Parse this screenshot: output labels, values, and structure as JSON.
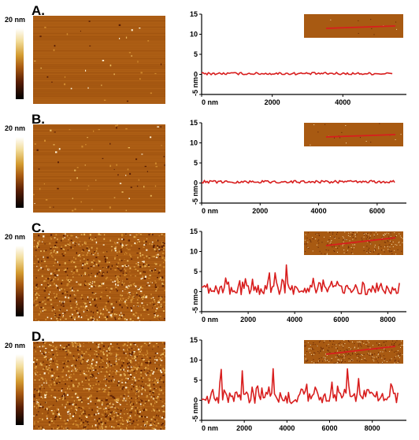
{
  "scale_label": "20 nm",
  "colors": {
    "trace": "#d81e1e",
    "afm_base": "#a85a12"
  },
  "chart_data": [
    {
      "type": "line",
      "panel": "A.",
      "xunit": "0 nm",
      "xticks": [
        0,
        2000,
        4000
      ],
      "xlim": [
        0,
        5800
      ],
      "yticks": [
        15,
        10,
        5,
        0,
        -5
      ],
      "ylabel": "-5 nm",
      "ylim": [
        -5,
        15
      ],
      "x_end": 5400,
      "baseline": 0.2,
      "noise": 0.3,
      "peaks": [],
      "has_line_inset": true
    },
    {
      "type": "line",
      "panel": "B.",
      "xunit": "0 nm",
      "xticks": [
        0,
        2000,
        4000,
        6000
      ],
      "xlim": [
        0,
        7000
      ],
      "yticks": [
        15,
        10,
        5,
        0,
        -5
      ],
      "ylabel": "-5 nm",
      "ylim": [
        -5,
        15
      ],
      "x_end": 6600,
      "baseline": 0.3,
      "noise": 0.35,
      "peaks": [],
      "has_line_inset": true
    },
    {
      "type": "line",
      "panel": "C.",
      "xunit": "0 nm",
      "xticks": [
        0,
        2000,
        4000,
        6000,
        8000
      ],
      "xlim": [
        0,
        8800
      ],
      "yticks": [
        15,
        10,
        5,
        0,
        -5
      ],
      "ylabel": "-5 nm",
      "ylim": [
        -5,
        15
      ],
      "x_end": 8500,
      "baseline": 0.4,
      "noise": 1.2,
      "peaks": [
        [
          1050,
          4.5
        ],
        [
          2900,
          5.8
        ],
        [
          3150,
          5.2
        ],
        [
          3650,
          7.4
        ],
        [
          5600,
          3.2
        ],
        [
          5850,
          3.6
        ],
        [
          7700,
          2.4
        ]
      ],
      "has_line_inset": true
    },
    {
      "type": "line",
      "panel": "D.",
      "xunit": "0 nm",
      "xticks": [
        0,
        2000,
        4000,
        6000,
        8000
      ],
      "xlim": [
        0,
        9600
      ],
      "yticks": [
        15,
        10,
        5,
        0,
        -5
      ],
      "ylabel": "-5 nm",
      "ylim": [
        -5,
        15
      ],
      "x_end": 9200,
      "baseline": 0.6,
      "noise": 1.4,
      "peaks": [
        [
          900,
          10.3
        ],
        [
          1900,
          7.9
        ],
        [
          2600,
          5.6
        ],
        [
          3350,
          8.0
        ],
        [
          5350,
          5.0
        ],
        [
          6100,
          5.3
        ],
        [
          6850,
          9.8
        ],
        [
          7350,
          6.2
        ],
        [
          8900,
          6.4
        ]
      ],
      "has_line_inset": true
    }
  ]
}
